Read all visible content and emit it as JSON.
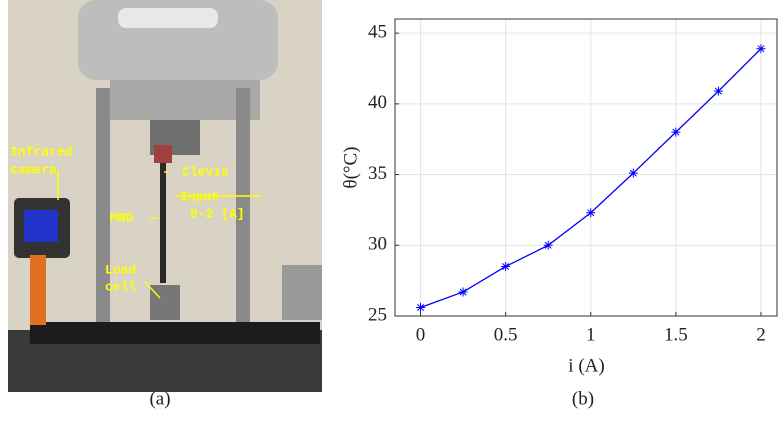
{
  "photo": {
    "labels": [
      "Infrared",
      "camera",
      "Clevis",
      "Input",
      "0-2 [A]",
      "MRD",
      "Load",
      "cell"
    ]
  },
  "captions": [
    "(a)",
    "(b)"
  ],
  "chart_data": {
    "type": "line",
    "xlabel": "i (A)",
    "ylabel": "θ(°C)",
    "x": [
      0,
      0.25,
      0.5,
      0.75,
      1,
      1.25,
      1.5,
      1.75,
      2
    ],
    "values": [
      25.6,
      26.7,
      28.5,
      30.0,
      32.3,
      35.1,
      38.0,
      40.9,
      43.9
    ],
    "color": "#0000ff",
    "marker": "*",
    "xlim": [
      -0.15,
      2.1
    ],
    "ylim": [
      25,
      46
    ],
    "xticks": [
      0,
      0.5,
      1,
      1.5,
      2
    ],
    "yticks": [
      25,
      30,
      35,
      40,
      45
    ],
    "grid": true
  }
}
